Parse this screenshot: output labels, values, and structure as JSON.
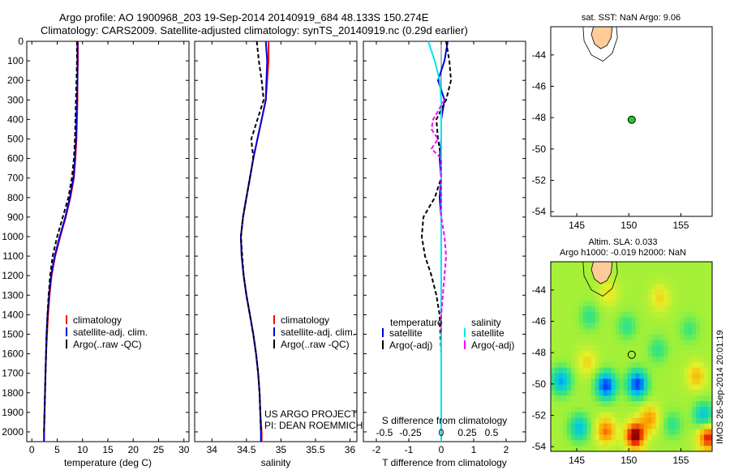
{
  "header": {
    "line1": "Argo profile: AO 1900968_203 19-Sep-2014 20140919_684 48.133S 150.274E",
    "line2": "Climatology: CARS2009. Satellite-adjusted climatology: synTS_20140919.nc (0.29d earlier)"
  },
  "side_note": "IMOS 26-Sep-2014 20:01:19",
  "colors": {
    "climatology": "#ff0000",
    "satellite": "#0000dd",
    "argo": "#000000",
    "s_satellite": "#00e5ee",
    "s_argo": "#ff00ff",
    "land": "#ffcc99",
    "float": "#22cc22"
  },
  "chart_data": [
    {
      "type": "line",
      "id": "temperature",
      "xlabel": "temperature (deg C)",
      "xlim": [
        -1,
        31
      ],
      "xticks": [
        0,
        5,
        10,
        15,
        20,
        25,
        30
      ],
      "ylim": [
        0,
        2050
      ],
      "yticks": [
        0,
        100,
        200,
        300,
        400,
        500,
        600,
        700,
        800,
        900,
        1000,
        1100,
        1200,
        1300,
        1400,
        1500,
        1600,
        1700,
        1800,
        1900,
        2000
      ],
      "legend": [
        "climatology",
        "satellite-adj. clim.",
        "Argo(..raw -QC)"
      ],
      "series": [
        {
          "name": "climatology",
          "values": [
            [
              9.1,
              0
            ],
            [
              9.1,
              100
            ],
            [
              9.0,
              200
            ],
            [
              9.0,
              300
            ],
            [
              8.9,
              400
            ],
            [
              8.8,
              500
            ],
            [
              8.6,
              600
            ],
            [
              8.3,
              700
            ],
            [
              7.6,
              800
            ],
            [
              6.7,
              900
            ],
            [
              5.6,
              1000
            ],
            [
              4.6,
              1100
            ],
            [
              3.9,
              1200
            ],
            [
              3.5,
              1300
            ],
            [
              3.2,
              1400
            ],
            [
              3.0,
              1500
            ],
            [
              2.8,
              1600
            ],
            [
              2.7,
              1700
            ],
            [
              2.6,
              1800
            ],
            [
              2.5,
              1900
            ],
            [
              2.4,
              2000
            ],
            [
              2.4,
              2050
            ]
          ]
        },
        {
          "name": "satellite-adj. clim.",
          "values": [
            [
              9.0,
              0
            ],
            [
              9.0,
              100
            ],
            [
              9.0,
              200
            ],
            [
              8.9,
              300
            ],
            [
              8.8,
              400
            ],
            [
              8.7,
              500
            ],
            [
              8.5,
              600
            ],
            [
              8.2,
              700
            ],
            [
              7.5,
              800
            ],
            [
              6.6,
              900
            ],
            [
              5.5,
              1000
            ],
            [
              4.5,
              1100
            ],
            [
              3.8,
              1200
            ],
            [
              3.4,
              1300
            ],
            [
              3.1,
              1400
            ],
            [
              2.9,
              1500
            ],
            [
              2.8,
              1600
            ],
            [
              2.7,
              1700
            ],
            [
              2.6,
              1800
            ],
            [
              2.5,
              1900
            ],
            [
              2.4,
              2000
            ],
            [
              2.4,
              2050
            ]
          ]
        },
        {
          "name": "Argo(..raw -QC)",
          "values": [
            [
              8.9,
              0
            ],
            [
              8.9,
              100
            ],
            [
              8.8,
              200
            ],
            [
              8.7,
              300
            ],
            [
              8.6,
              400
            ],
            [
              8.5,
              500
            ],
            [
              8.3,
              600
            ],
            [
              7.9,
              700
            ],
            [
              7.2,
              800
            ],
            [
              6.1,
              900
            ],
            [
              5.0,
              1000
            ],
            [
              4.1,
              1100
            ],
            [
              3.6,
              1200
            ],
            [
              3.3,
              1300
            ],
            [
              3.1,
              1400
            ],
            [
              2.9,
              1500
            ],
            [
              2.8,
              1600
            ],
            [
              2.7,
              1700
            ],
            [
              2.6,
              1800
            ],
            [
              2.5,
              1900
            ],
            [
              2.4,
              2000
            ]
          ]
        }
      ]
    },
    {
      "type": "line",
      "id": "salinity",
      "xlabel": "salinity",
      "xlim": [
        33.75,
        36.1
      ],
      "xticks": [
        34,
        34.5,
        35,
        35.5,
        36
      ],
      "ylim": [
        0,
        2050
      ],
      "legend": [
        "climatology",
        "satellite-adj. clim.",
        "Argo(..raw -QC)"
      ],
      "annotation": [
        "US ARGO PROJECT",
        "PI: DEAN ROEMMICH"
      ],
      "series": [
        {
          "name": "climatology",
          "values": [
            [
              34.82,
              0
            ],
            [
              34.82,
              100
            ],
            [
              34.8,
              200
            ],
            [
              34.78,
              300
            ],
            [
              34.72,
              400
            ],
            [
              34.66,
              500
            ],
            [
              34.6,
              600
            ],
            [
              34.55,
              700
            ],
            [
              34.5,
              800
            ],
            [
              34.45,
              900
            ],
            [
              34.42,
              1000
            ],
            [
              34.43,
              1100
            ],
            [
              34.46,
              1200
            ],
            [
              34.5,
              1300
            ],
            [
              34.55,
              1400
            ],
            [
              34.6,
              1500
            ],
            [
              34.64,
              1600
            ],
            [
              34.67,
              1700
            ],
            [
              34.69,
              1800
            ],
            [
              34.7,
              1900
            ],
            [
              34.72,
              2000
            ],
            [
              34.72,
              2050
            ]
          ]
        },
        {
          "name": "satellite-adj. clim.",
          "values": [
            [
              34.78,
              0
            ],
            [
              34.8,
              100
            ],
            [
              34.79,
              200
            ],
            [
              34.78,
              300
            ],
            [
              34.72,
              400
            ],
            [
              34.66,
              500
            ],
            [
              34.6,
              600
            ],
            [
              34.55,
              700
            ],
            [
              34.5,
              800
            ],
            [
              34.45,
              900
            ],
            [
              34.42,
              1000
            ],
            [
              34.43,
              1100
            ],
            [
              34.46,
              1200
            ],
            [
              34.5,
              1300
            ],
            [
              34.55,
              1400
            ],
            [
              34.6,
              1500
            ],
            [
              34.64,
              1600
            ],
            [
              34.67,
              1700
            ],
            [
              34.69,
              1800
            ],
            [
              34.7,
              1900
            ],
            [
              34.71,
              2000
            ],
            [
              34.71,
              2050
            ]
          ]
        },
        {
          "name": "Argo(..raw -QC)",
          "values": [
            [
              34.65,
              0
            ],
            [
              34.68,
              100
            ],
            [
              34.72,
              200
            ],
            [
              34.75,
              300
            ],
            [
              34.66,
              400
            ],
            [
              34.57,
              500
            ],
            [
              34.6,
              600
            ],
            [
              34.55,
              700
            ],
            [
              34.5,
              800
            ],
            [
              34.45,
              900
            ],
            [
              34.42,
              1000
            ],
            [
              34.44,
              1100
            ],
            [
              34.46,
              1200
            ],
            [
              34.5,
              1300
            ],
            [
              34.55,
              1400
            ],
            [
              34.6,
              1500
            ],
            [
              34.64,
              1600
            ],
            [
              34.67,
              1700
            ],
            [
              34.69,
              1800
            ],
            [
              34.7,
              1900
            ],
            [
              34.71,
              2000
            ]
          ]
        }
      ]
    },
    {
      "type": "line",
      "id": "differences",
      "xlabel": "T difference from climatology",
      "xlabel_top": "S difference from climatology",
      "xlim": [
        -2.4,
        2.6
      ],
      "xticks": [
        -2,
        -1,
        0,
        1,
        2
      ],
      "xticks_top": [
        {
          "pos": -1.75,
          "label": "-0.5"
        },
        {
          "pos": -0.95,
          "label": "-0.25"
        },
        {
          "pos": 0,
          "label": "0"
        },
        {
          "pos": 0.8,
          "label": "0.25"
        },
        {
          "pos": 1.55,
          "label": "0.5"
        }
      ],
      "ylim": [
        0,
        2050
      ],
      "legend_left_title": "temperature",
      "legend_right_title": "salinity",
      "legend": [
        "satellite",
        "Argo(-adj)",
        "satellite",
        "Argo(-adj)"
      ],
      "series": [
        {
          "name": "T satellite",
          "values": [
            [
              0.2,
              0
            ],
            [
              0.1,
              100
            ],
            [
              -0.1,
              200
            ],
            [
              0.1,
              300
            ],
            [
              0.0,
              400
            ],
            [
              0.0,
              500
            ],
            [
              -0.05,
              600
            ],
            [
              0.0,
              700
            ],
            [
              -0.05,
              800
            ],
            [
              0.0,
              900
            ],
            [
              0.0,
              1000
            ],
            [
              0.0,
              1200
            ],
            [
              0.0,
              1400
            ],
            [
              0.0,
              1600
            ],
            [
              0.0,
              1800
            ],
            [
              0.0,
              2000
            ],
            [
              0.0,
              2050
            ]
          ]
        },
        {
          "name": "T Argo(-adj)",
          "values": [
            [
              0.15,
              0
            ],
            [
              0.25,
              100
            ],
            [
              0.3,
              200
            ],
            [
              0.15,
              300
            ],
            [
              -0.15,
              400
            ],
            [
              -0.1,
              500
            ],
            [
              0.0,
              600
            ],
            [
              0.0,
              700
            ],
            [
              -0.2,
              800
            ],
            [
              -0.55,
              900
            ],
            [
              -0.6,
              1000
            ],
            [
              -0.5,
              1100
            ],
            [
              -0.3,
              1200
            ],
            [
              -0.15,
              1300
            ],
            [
              -0.05,
              1400
            ],
            [
              0.0,
              1600
            ],
            [
              0.0,
              1800
            ],
            [
              0.0,
              2000
            ]
          ]
        },
        {
          "name": "S satellite",
          "values": [
            [
              -0.4,
              0
            ],
            [
              -0.2,
              100
            ],
            [
              -0.05,
              200
            ],
            [
              0.0,
              300
            ],
            [
              0.0,
              400
            ],
            [
              0.0,
              600
            ],
            [
              0.0,
              800
            ],
            [
              0.0,
              1000
            ],
            [
              0.0,
              1200
            ],
            [
              0.0,
              1400
            ],
            [
              0.0,
              1600
            ],
            [
              0.0,
              1800
            ],
            [
              0.0,
              2050
            ]
          ]
        },
        {
          "name": "S Argo(-adj)",
          "values": [
            [
              0.1,
              300
            ],
            [
              -0.25,
              400
            ],
            [
              -0.3,
              450
            ],
            [
              -0.1,
              500
            ],
            [
              -0.3,
              550
            ],
            [
              0.0,
              600
            ],
            [
              0.0,
              900
            ],
            [
              0.1,
              1000
            ],
            [
              0.15,
              1100
            ],
            [
              0.1,
              1200
            ],
            [
              0.05,
              1300
            ],
            [
              0.0,
              1400
            ],
            [
              0.0,
              1500
            ]
          ]
        }
      ]
    },
    {
      "type": "scatter",
      "id": "sst_map",
      "title": "sat. SST: NaN Argo: 9.06",
      "xlim": [
        142.5,
        158
      ],
      "ylim": [
        -54.3,
        -42.2
      ],
      "xticks": [
        145,
        150,
        155
      ],
      "yticks": [
        -44,
        -46,
        -48,
        -50,
        -52,
        -54
      ],
      "float": {
        "lon": 150.274,
        "lat": -48.133
      }
    },
    {
      "type": "heatmap",
      "id": "sla_map",
      "title_lines": [
        "Altim. SLA: 0.033",
        "Argo h1000: -0.019 h2000: NaN"
      ],
      "xlim": [
        142.5,
        158
      ],
      "ylim": [
        -54.3,
        -42.2
      ],
      "xticks": [
        145,
        150,
        155
      ],
      "yticks": [
        -44,
        -46,
        -48,
        -50,
        -52,
        -54
      ],
      "float": {
        "lon": 150.274,
        "lat": -48.133
      },
      "blobs": [
        {
          "lon": 147.8,
          "lat": -50.1,
          "v": -1.0
        },
        {
          "lon": 150.8,
          "lat": -50.0,
          "v": -1.0
        },
        {
          "lon": 143.5,
          "lat": -49.8,
          "v": -0.7
        },
        {
          "lon": 145.2,
          "lat": -52.8,
          "v": -0.6
        },
        {
          "lon": 146.2,
          "lat": -45.7,
          "v": -0.3
        },
        {
          "lon": 149.8,
          "lat": -46.3,
          "v": -0.3
        },
        {
          "lon": 152.8,
          "lat": -47.8,
          "v": -0.3
        },
        {
          "lon": 155.8,
          "lat": -46.5,
          "v": -0.25
        },
        {
          "lon": 154.2,
          "lat": -52.6,
          "v": -0.3
        },
        {
          "lon": 157.2,
          "lat": -52.0,
          "v": -0.6
        },
        {
          "lon": 150.6,
          "lat": -53.3,
          "v": 1.0
        },
        {
          "lon": 147.8,
          "lat": -53.0,
          "v": 0.6
        },
        {
          "lon": 152.0,
          "lat": -52.2,
          "v": 0.5
        },
        {
          "lon": 157.6,
          "lat": -53.4,
          "v": 0.8
        },
        {
          "lon": 156.5,
          "lat": -49.5,
          "v": 0.4
        },
        {
          "lon": 146.0,
          "lat": -48.6,
          "v": 0.3
        },
        {
          "lon": 153.0,
          "lat": -44.5,
          "v": 0.3
        },
        {
          "lon": 148.0,
          "lat": -44.2,
          "v": 0.25
        }
      ]
    }
  ]
}
